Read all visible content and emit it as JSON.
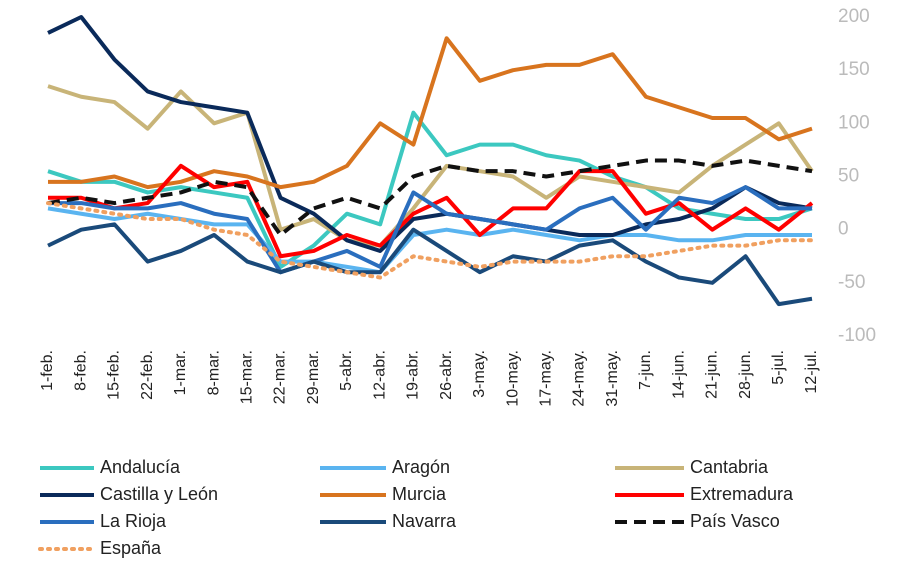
{
  "chart_data": {
    "type": "line",
    "categories": [
      "1-feb.",
      "8-feb.",
      "15-feb.",
      "22-feb.",
      "1-mar.",
      "8-mar.",
      "15-mar.",
      "22-mar.",
      "29-mar.",
      "5-abr.",
      "12-abr.",
      "19-abr.",
      "26-abr.",
      "3-may.",
      "10-may.",
      "17-may.",
      "24-may.",
      "31-may.",
      "7-jun.",
      "14-jun.",
      "21-jun.",
      "28-jun.",
      "5-jul.",
      "12-jul."
    ],
    "ylim": [
      -100,
      200
    ],
    "yticks": [
      -100,
      -50,
      0,
      50,
      100,
      150,
      200
    ],
    "grid": false,
    "series": [
      {
        "name": "Andalucía",
        "color": "#3cc8c0",
        "dash": "solid",
        "values": [
          55,
          45,
          45,
          35,
          40,
          35,
          30,
          -35,
          -15,
          15,
          5,
          110,
          70,
          80,
          80,
          70,
          65,
          50,
          40,
          20,
          15,
          10,
          10,
          20
        ]
      },
      {
        "name": "Aragón",
        "color": "#5ab4f0",
        "dash": "solid",
        "values": [
          20,
          15,
          10,
          15,
          10,
          5,
          5,
          -30,
          -30,
          -35,
          -40,
          -5,
          0,
          -5,
          0,
          -5,
          -10,
          -5,
          -5,
          -10,
          -10,
          -5,
          -5,
          -5
        ]
      },
      {
        "name": "Cantabria",
        "color": "#c8b478",
        "dash": "solid",
        "values": [
          135,
          125,
          120,
          95,
          130,
          100,
          110,
          0,
          10,
          -10,
          -15,
          20,
          60,
          55,
          50,
          30,
          50,
          45,
          40,
          35,
          60,
          80,
          100,
          55
        ]
      },
      {
        "name": "Castilla y León",
        "color": "#0a2a5a",
        "dash": "solid",
        "values": [
          185,
          200,
          160,
          130,
          120,
          115,
          110,
          30,
          15,
          -10,
          -20,
          10,
          15,
          10,
          5,
          0,
          -5,
          -5,
          5,
          10,
          20,
          40,
          25,
          20
        ]
      },
      {
        "name": "Murcia",
        "color": "#d8741e",
        "dash": "solid",
        "values": [
          45,
          45,
          50,
          40,
          45,
          55,
          50,
          40,
          45,
          60,
          100,
          80,
          180,
          140,
          150,
          155,
          155,
          165,
          125,
          115,
          105,
          105,
          85,
          95
        ]
      },
      {
        "name": "Extremadura",
        "color": "#ff0000",
        "dash": "solid",
        "values": [
          30,
          30,
          20,
          25,
          60,
          40,
          45,
          -25,
          -20,
          -5,
          -15,
          15,
          30,
          -5,
          20,
          20,
          55,
          55,
          15,
          25,
          0,
          20,
          0,
          25
        ]
      },
      {
        "name": "La Rioja",
        "color": "#2a6ebe",
        "dash": "solid",
        "values": [
          25,
          25,
          20,
          20,
          25,
          15,
          10,
          -40,
          -30,
          -20,
          -35,
          35,
          15,
          10,
          5,
          0,
          20,
          30,
          0,
          30,
          25,
          40,
          20,
          20
        ]
      },
      {
        "name": "Navarra",
        "color": "#1a4a7a",
        "dash": "solid",
        "values": [
          -15,
          0,
          5,
          -30,
          -20,
          -5,
          -30,
          -40,
          -30,
          -40,
          -40,
          0,
          -20,
          -40,
          -25,
          -30,
          -15,
          -10,
          -30,
          -45,
          -50,
          -25,
          -70,
          -65
        ]
      },
      {
        "name": "País Vasco",
        "color": "#111111",
        "dash": "dashed",
        "values": [
          25,
          30,
          25,
          30,
          35,
          45,
          40,
          -5,
          20,
          30,
          20,
          50,
          60,
          55,
          55,
          50,
          55,
          60,
          65,
          65,
          60,
          65,
          60,
          55
        ]
      },
      {
        "name": "España",
        "color": "#f0a060",
        "dash": "dotted",
        "values": [
          25,
          20,
          15,
          10,
          10,
          0,
          -5,
          -30,
          -35,
          -40,
          -45,
          -25,
          -30,
          -35,
          -30,
          -30,
          -30,
          -25,
          -25,
          -20,
          -15,
          -15,
          -10,
          -10
        ]
      }
    ]
  }
}
